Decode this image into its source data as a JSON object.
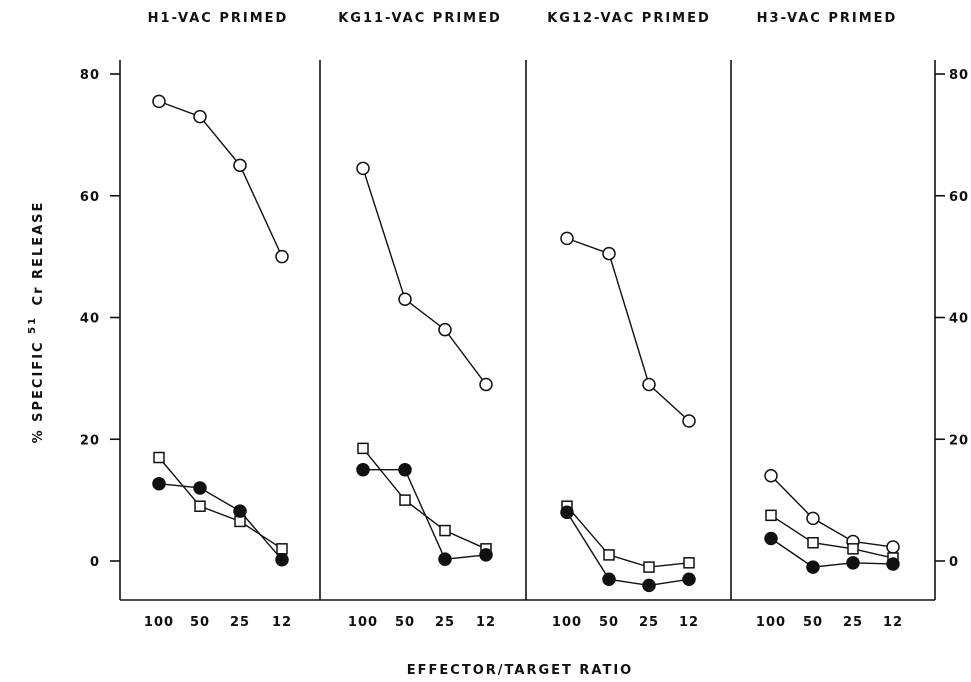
{
  "chart_data": {
    "type": "line",
    "ylabel": "% SPECIFIC",
    "ylabel_sup": "51",
    "ylabel_tail": "Cr RELEASE",
    "xlabel": "EFFECTOR/TARGET RATIO",
    "ylim": [
      -6,
      80
    ],
    "yticks": [
      0,
      20,
      40,
      60,
      80
    ],
    "categories": [
      "100",
      "50",
      "25",
      "12"
    ],
    "panels": [
      {
        "title": "H1-VAC PRIMED",
        "series": [
          {
            "marker": "open-circle",
            "values": [
              75.5,
              73,
              65,
              50
            ]
          },
          {
            "marker": "open-square",
            "values": [
              17,
              9,
              6.5,
              2
            ]
          },
          {
            "marker": "filled-circle",
            "values": [
              12.7,
              12,
              8.2,
              0.2
            ]
          }
        ]
      },
      {
        "title": "KG11-VAC PRIMED",
        "series": [
          {
            "marker": "open-circle",
            "values": [
              64.5,
              43,
              38,
              29
            ]
          },
          {
            "marker": "open-square",
            "values": [
              18.5,
              10,
              5,
              2
            ]
          },
          {
            "marker": "filled-circle",
            "values": [
              15,
              15,
              0.3,
              1
            ]
          }
        ]
      },
      {
        "title": "KG12-VAC PRIMED",
        "series": [
          {
            "marker": "open-circle",
            "values": [
              53,
              50.5,
              29,
              23
            ]
          },
          {
            "marker": "open-square",
            "values": [
              9,
              1,
              -1,
              -0.3
            ]
          },
          {
            "marker": "filled-circle",
            "values": [
              8,
              -3,
              -4,
              -3
            ]
          }
        ]
      },
      {
        "title": "H3-VAC PRIMED",
        "series": [
          {
            "marker": "open-circle",
            "values": [
              14,
              7,
              3.2,
              2.3
            ]
          },
          {
            "marker": "open-square",
            "values": [
              7.5,
              3,
              2,
              0.5
            ]
          },
          {
            "marker": "filled-circle",
            "values": [
              3.7,
              -1,
              -0.3,
              -0.5
            ]
          }
        ]
      }
    ]
  }
}
